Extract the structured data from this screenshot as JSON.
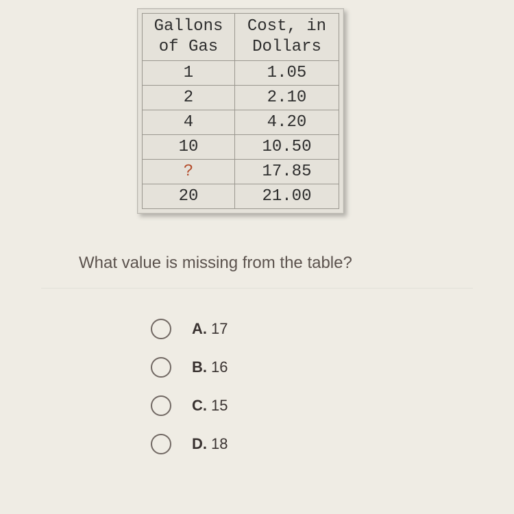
{
  "table": {
    "headers": [
      "Gallons\nof Gas",
      "Cost, in\nDollars"
    ],
    "rows": [
      {
        "gallons": "1",
        "cost": "1.05",
        "missing": false
      },
      {
        "gallons": "2",
        "cost": "2.10",
        "missing": false
      },
      {
        "gallons": "4",
        "cost": "4.20",
        "missing": false
      },
      {
        "gallons": "10",
        "cost": "10.50",
        "missing": false
      },
      {
        "gallons": "?",
        "cost": "17.85",
        "missing": true
      },
      {
        "gallons": "20",
        "cost": "21.00",
        "missing": false
      }
    ]
  },
  "question": "What value is missing from the table?",
  "options": [
    {
      "letter": "A.",
      "value": "17"
    },
    {
      "letter": "B.",
      "value": "16"
    },
    {
      "letter": "C.",
      "value": "15"
    },
    {
      "letter": "D.",
      "value": "18"
    }
  ],
  "colors": {
    "page_bg": "#efece4",
    "card_bg": "#e5e2da",
    "border": "#9a978f",
    "text": "#2d2d2d",
    "missing": "#b34b2a",
    "question": "#5b524d",
    "radio": "#716863"
  }
}
